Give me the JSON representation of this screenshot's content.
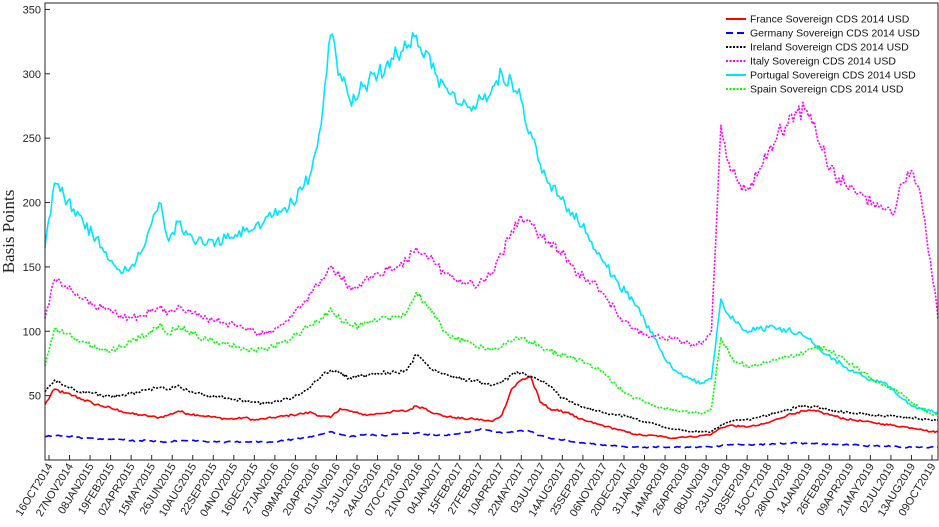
{
  "chart_data": {
    "type": "line",
    "title": "",
    "xlabel": "",
    "ylabel": "Basis Points",
    "ylim": [
      0,
      355
    ],
    "yticks": [
      50,
      100,
      150,
      200,
      250,
      300,
      350
    ],
    "grid": false,
    "legend_position": "top-right",
    "x_tick_labels": [
      "16OCT2014",
      "27NOV2014",
      "08JAN2015",
      "19FEB2015",
      "02APR2015",
      "15MAY2015",
      "26JUN2015",
      "10AUG2015",
      "22SEP2015",
      "04NOV2015",
      "16DEC2015",
      "27JAN2016",
      "09MAR2016",
      "20APR2016",
      "01JUN2016",
      "13JUL2016",
      "24AUG2016",
      "07OCT2016",
      "21NOV2016",
      "04JAN2017",
      "15FEB2017",
      "27FEB2017",
      "10APR2017",
      "22MAY2017",
      "03JUL2017",
      "14AUG2017",
      "25SEP2017",
      "06NOV2017",
      "20DEC2017",
      "31JAN2018",
      "14MAR2018",
      "26APR2018",
      "08JUN2018",
      "23JUL2018",
      "03SEP2018",
      "15OCT2018",
      "28NOV2018",
      "14JAN2019",
      "26FEB2019",
      "09APR2019",
      "21MAY2019",
      "02JUL2019",
      "13AUG2019",
      "09OCT2019"
    ],
    "x": [
      0,
      10,
      20,
      30,
      40,
      50,
      60,
      70,
      80,
      90,
      100,
      110,
      120,
      130,
      140,
      150,
      160,
      170,
      180,
      190,
      200,
      210,
      220,
      230,
      240,
      250,
      260,
      270,
      280,
      290,
      300,
      310,
      320,
      330,
      340,
      350,
      360,
      370,
      380,
      390,
      400,
      410,
      420,
      430,
      440,
      450,
      460,
      470,
      480,
      490,
      500,
      510,
      520,
      530,
      540,
      550,
      560,
      570,
      580,
      590,
      600,
      610,
      620,
      630,
      640,
      650,
      660,
      670,
      680,
      690,
      700,
      710,
      720,
      730,
      740,
      750,
      760,
      770,
      780,
      790,
      800,
      810,
      820,
      830,
      840,
      850,
      860,
      870,
      880,
      890,
      900,
      910,
      920,
      930,
      938
    ],
    "series": [
      {
        "name": "France Sovereign CDS 2014 USD",
        "color": "#ff0000",
        "dash": "",
        "width": 1.6,
        "values": [
          43,
          55,
          52,
          50,
          47,
          44,
          42,
          40,
          38,
          36,
          35,
          34,
          33,
          35,
          38,
          36,
          35,
          34,
          33,
          32,
          32,
          33,
          31,
          32,
          33,
          34,
          35,
          36,
          37,
          34,
          33,
          40,
          38,
          36,
          35,
          36,
          37,
          38,
          38,
          42,
          40,
          36,
          34,
          33,
          32,
          32,
          31,
          30,
          35,
          55,
          62,
          65,
          45,
          40,
          38,
          37,
          32,
          30,
          28,
          26,
          24,
          22,
          20,
          19,
          19,
          18,
          17,
          18,
          18,
          19,
          20,
          25,
          27,
          26,
          26,
          27,
          29,
          32,
          35,
          37,
          38,
          38,
          36,
          34,
          32,
          31,
          30,
          29,
          28,
          27,
          26,
          25,
          24,
          22,
          22
        ]
      },
      {
        "name": "Germany Sovereign CDS 2014 USD",
        "color": "#0000ff",
        "dash": "7,4",
        "width": 1.6,
        "values": [
          18,
          19,
          19,
          18,
          17,
          17,
          16,
          16,
          16,
          15,
          15,
          15,
          14,
          14,
          15,
          15,
          15,
          14,
          14,
          14,
          14,
          14,
          14,
          14,
          14,
          15,
          16,
          17,
          18,
          20,
          22,
          20,
          18,
          19,
          20,
          19,
          19,
          20,
          21,
          21,
          20,
          19,
          19,
          20,
          21,
          23,
          24,
          22,
          21,
          22,
          23,
          22,
          19,
          17,
          16,
          15,
          14,
          13,
          12,
          11,
          11,
          10,
          10,
          10,
          10,
          10,
          10,
          10,
          10,
          10,
          10,
          11,
          12,
          12,
          12,
          12,
          12,
          13,
          13,
          13,
          13,
          13,
          12,
          12,
          12,
          12,
          11,
          11,
          11,
          11,
          10,
          10,
          10,
          10,
          10
        ]
      },
      {
        "name": "Ireland Sovereign CDS 2014 USD",
        "color": "#000000",
        "dash": "2,1.5",
        "width": 1.6,
        "values": [
          53,
          62,
          58,
          55,
          53,
          52,
          50,
          49,
          50,
          52,
          53,
          55,
          56,
          55,
          58,
          54,
          52,
          50,
          49,
          48,
          47,
          46,
          45,
          44,
          45,
          47,
          48,
          52,
          58,
          65,
          70,
          67,
          64,
          65,
          66,
          67,
          68,
          68,
          70,
          82,
          75,
          70,
          67,
          65,
          63,
          62,
          60,
          58,
          60,
          66,
          68,
          65,
          62,
          57,
          50,
          46,
          43,
          40,
          38,
          36,
          35,
          34,
          32,
          30,
          28,
          26,
          24,
          23,
          22,
          22,
          22,
          27,
          30,
          31,
          31,
          33,
          35,
          37,
          39,
          41,
          42,
          41,
          40,
          38,
          37,
          36,
          36,
          35,
          34,
          34,
          33,
          33,
          32,
          31,
          31
        ]
      },
      {
        "name": "Italy Sovereign CDS 2014 USD",
        "color": "#ff00ff",
        "dash": "2,1.5",
        "width": 1.6,
        "values": [
          110,
          140,
          135,
          130,
          125,
          120,
          118,
          115,
          112,
          110,
          112,
          115,
          118,
          115,
          120,
          116,
          112,
          110,
          108,
          106,
          104,
          102,
          100,
          98,
          100,
          105,
          112,
          120,
          130,
          140,
          150,
          142,
          135,
          136,
          140,
          145,
          148,
          150,
          155,
          165,
          160,
          152,
          145,
          140,
          138,
          136,
          140,
          145,
          160,
          178,
          190,
          185,
          175,
          170,
          162,
          155,
          145,
          140,
          135,
          125,
          115,
          108,
          102,
          98,
          96,
          95,
          94,
          92,
          90,
          90,
          100,
          260,
          225,
          215,
          210,
          225,
          240,
          255,
          260,
          270,
          272,
          255,
          235,
          220,
          215,
          210,
          205,
          200,
          195,
          190,
          215,
          225,
          205,
          155,
          110
        ]
      },
      {
        "name": "Portugal Sovereign CDS 2014 USD",
        "color": "#00e5ff",
        "dash": "",
        "width": 1.6,
        "values": [
          165,
          215,
          205,
          195,
          185,
          175,
          165,
          155,
          145,
          150,
          160,
          180,
          200,
          170,
          185,
          175,
          170,
          168,
          170,
          172,
          175,
          178,
          180,
          185,
          190,
          195,
          200,
          210,
          225,
          260,
          330,
          300,
          280,
          285,
          295,
          300,
          310,
          315,
          320,
          330,
          318,
          300,
          290,
          285,
          280,
          275,
          280,
          290,
          300,
          295,
          280,
          255,
          230,
          215,
          205,
          195,
          185,
          175,
          160,
          150,
          140,
          130,
          120,
          108,
          95,
          80,
          70,
          65,
          62,
          60,
          63,
          125,
          110,
          105,
          100,
          102,
          103,
          102,
          101,
          98,
          95,
          88,
          82,
          78,
          72,
          68,
          65,
          62,
          60,
          55,
          48,
          42,
          40,
          38,
          37
        ]
      },
      {
        "name": "Spain Sovereign CDS 2014 USD",
        "color": "#00ff00",
        "dash": "2,1.5",
        "width": 1.6,
        "values": [
          73,
          102,
          98,
          95,
          92,
          88,
          86,
          85,
          88,
          92,
          95,
          100,
          105,
          98,
          104,
          100,
          96,
          94,
          92,
          90,
          88,
          86,
          85,
          86,
          88,
          92,
          95,
          100,
          105,
          110,
          118,
          110,
          105,
          104,
          106,
          108,
          110,
          112,
          115,
          130,
          122,
          110,
          100,
          95,
          92,
          90,
          88,
          86,
          88,
          92,
          95,
          92,
          88,
          85,
          82,
          80,
          78,
          75,
          72,
          65,
          58,
          52,
          48,
          45,
          42,
          40,
          39,
          38,
          37,
          36,
          40,
          95,
          80,
          75,
          72,
          74,
          76,
          78,
          80,
          82,
          85,
          88,
          86,
          82,
          78,
          72,
          68,
          62,
          58,
          55,
          52,
          45,
          40,
          36,
          35
        ]
      }
    ]
  }
}
